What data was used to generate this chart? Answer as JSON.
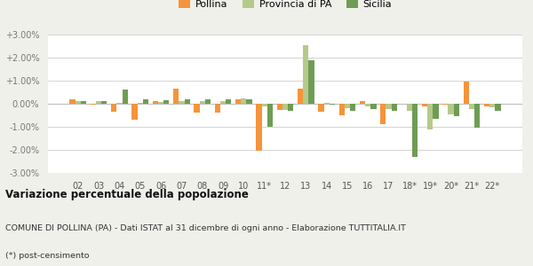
{
  "categories": [
    "02",
    "03",
    "04",
    "05",
    "06",
    "07",
    "08",
    "09",
    "10",
    "11*",
    "12",
    "13",
    "14",
    "15",
    "16",
    "17",
    "18*",
    "19*",
    "20*",
    "21*",
    "22*"
  ],
  "pollina": [
    0.2,
    -0.05,
    -0.35,
    -0.7,
    0.1,
    0.65,
    -0.4,
    -0.4,
    0.2,
    -2.05,
    -0.25,
    0.65,
    -0.35,
    -0.5,
    0.12,
    -0.9,
    -0.0,
    -0.1,
    -0.05,
    0.97,
    -0.1
  ],
  "provincia": [
    0.1,
    0.1,
    0.05,
    0.05,
    0.06,
    0.1,
    0.12,
    0.12,
    0.25,
    -0.12,
    -0.25,
    2.55,
    0.05,
    -0.18,
    -0.12,
    -0.22,
    -0.3,
    -1.12,
    -0.48,
    -0.22,
    -0.16
  ],
  "sicilia": [
    0.1,
    0.1,
    0.6,
    0.2,
    0.15,
    0.2,
    0.18,
    0.18,
    0.2,
    -1.0,
    -0.3,
    1.9,
    -0.05,
    -0.3,
    -0.22,
    -0.3,
    -2.3,
    -0.65,
    -0.55,
    -1.05,
    -0.3
  ],
  "color_pollina": "#f5943a",
  "color_provincia": "#b5c98a",
  "color_sicilia": "#6e9c55",
  "bar_width": 0.27,
  "ylim": [
    -3.0,
    3.0
  ],
  "yticks": [
    -3.0,
    -2.0,
    -1.0,
    0.0,
    1.0,
    2.0,
    3.0
  ],
  "title": "Variazione percentuale della popolazione",
  "subtitle1": "COMUNE DI POLLINA (PA) - Dati ISTAT al 31 dicembre di ogni anno - Elaborazione TUTTITALIA.IT",
  "subtitle2": "(*) post-censimento",
  "legend_labels": [
    "Pollina",
    "Provincia di PA",
    "Sicilia"
  ],
  "bg_color": "#f0f0eb",
  "plot_bg": "#ffffff"
}
